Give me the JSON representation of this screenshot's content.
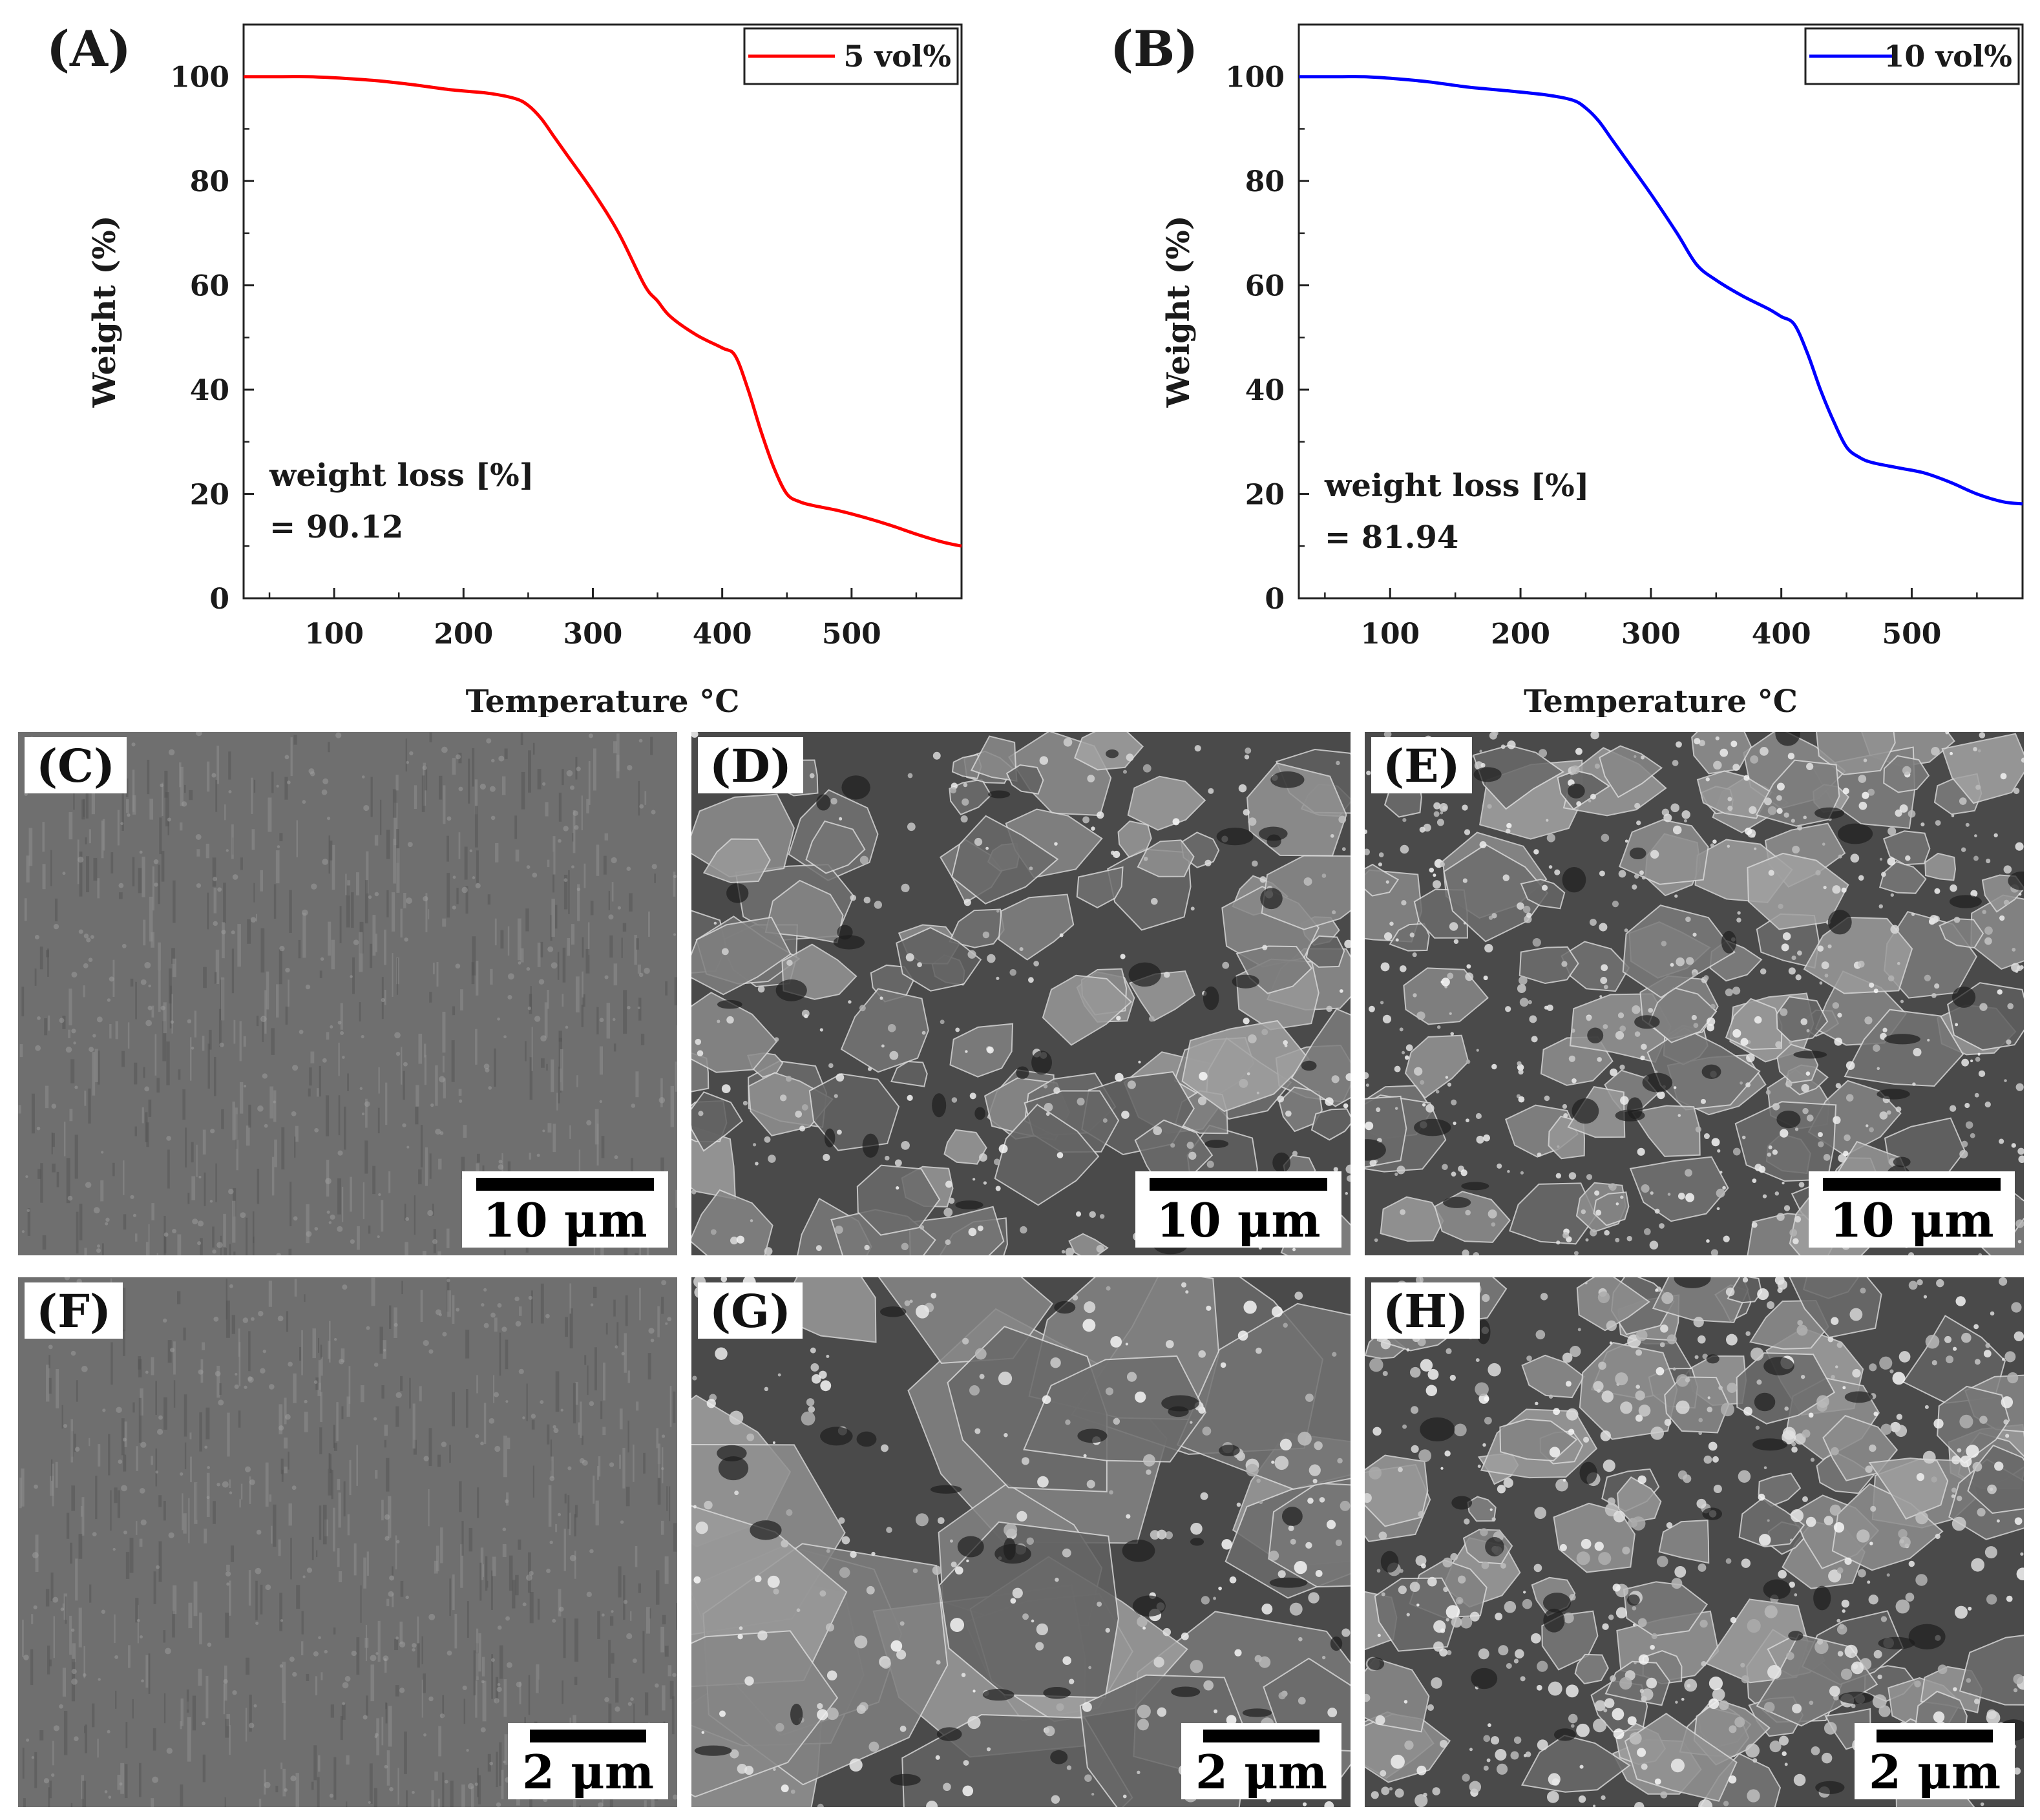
{
  "chart_data": [
    {
      "type": "line",
      "panel": "(A)",
      "xlabel": "Temperature °C",
      "ylabel": "Weight (%)",
      "xlim": [
        30,
        585
      ],
      "ylim": [
        0,
        110
      ],
      "xticks": [
        100,
        200,
        300,
        400,
        500
      ],
      "yticks": [
        0,
        20,
        40,
        60,
        80,
        100
      ],
      "legend": "top-right",
      "annotation": [
        "weight loss [%]",
        "= 90.12"
      ],
      "series": [
        {
          "name": "5 vol%",
          "color": "#ff0000",
          "x": [
            30,
            60,
            80,
            100,
            130,
            160,
            190,
            220,
            240,
            250,
            260,
            270,
            280,
            300,
            320,
            340,
            350,
            360,
            380,
            400,
            410,
            420,
            430,
            440,
            450,
            460,
            470,
            490,
            510,
            530,
            550,
            570,
            585
          ],
          "y": [
            100,
            100,
            100,
            99.8,
            99.3,
            98.5,
            97.5,
            96.8,
            95.8,
            94.5,
            92,
            88.5,
            85,
            78,
            70,
            60,
            57,
            54,
            50.5,
            48,
            46.5,
            40,
            32,
            25,
            20,
            18.5,
            17.8,
            16.8,
            15.5,
            14,
            12.3,
            10.8,
            10
          ]
        }
      ]
    },
    {
      "type": "line",
      "panel": "(B)",
      "xlabel": "Temperature °C",
      "ylabel": "Weight (%)",
      "xlim": [
        30,
        585
      ],
      "ylim": [
        0,
        110
      ],
      "xticks": [
        100,
        200,
        300,
        400,
        500
      ],
      "yticks": [
        0,
        20,
        40,
        60,
        80,
        100
      ],
      "legend": "top-right",
      "annotation": [
        "weight loss [%]",
        "= 81.94"
      ],
      "series": [
        {
          "name": "10 vol%",
          "color": "#0000ff",
          "x": [
            30,
            60,
            80,
            100,
            130,
            160,
            190,
            220,
            240,
            250,
            260,
            270,
            280,
            300,
            320,
            335,
            350,
            370,
            390,
            400,
            410,
            420,
            430,
            440,
            450,
            460,
            470,
            490,
            510,
            530,
            550,
            570,
            585
          ],
          "y": [
            100,
            100,
            100,
            99.7,
            99,
            98,
            97.3,
            96.5,
            95.5,
            94,
            91.5,
            88,
            84.5,
            77.5,
            70,
            64,
            61,
            58,
            55.5,
            54,
            52.5,
            47,
            40,
            34,
            29,
            27,
            26,
            25,
            24,
            22.2,
            20,
            18.5,
            18.1
          ]
        }
      ]
    }
  ],
  "sem_panels": [
    {
      "label": "(C)",
      "scale": "10 μm",
      "texture": "smooth-striated"
    },
    {
      "label": "(D)",
      "scale": "10 μm",
      "texture": "rough-fracture"
    },
    {
      "label": "(E)",
      "scale": "10 μm",
      "texture": "rough-particulate"
    },
    {
      "label": "(F)",
      "scale": "2 μm",
      "texture": "smooth-striated"
    },
    {
      "label": "(G)",
      "scale": "2 μm",
      "texture": "platelets-particles"
    },
    {
      "label": "(H)",
      "scale": "2 μm",
      "texture": "rough-particulate-dense"
    }
  ]
}
